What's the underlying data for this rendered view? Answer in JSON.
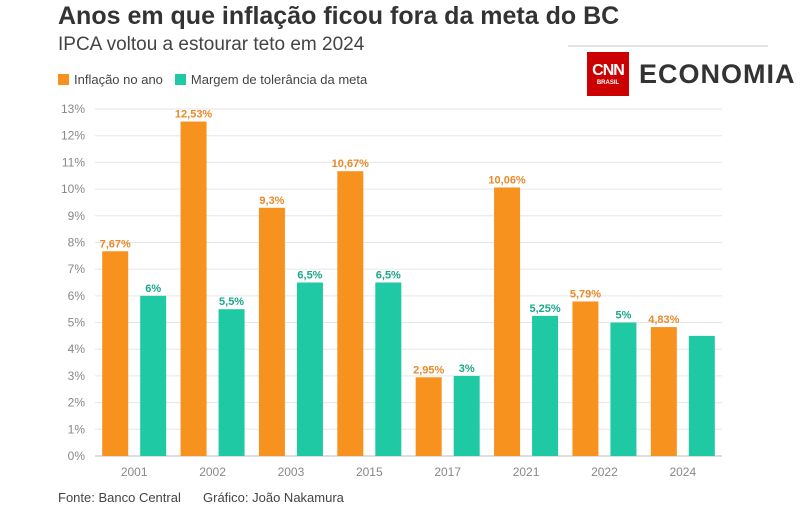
{
  "header": {
    "title": "Anos em que inflação ficou fora da meta do BC",
    "subtitle": "IPCA voltou a estourar teto em 2024"
  },
  "logo": {
    "cnn": "CNN",
    "cnn_sub": "BRASIL",
    "economia": "ECONOMIA"
  },
  "footer": {
    "source": "Fonte: Banco Central",
    "credit": "Gráfico: João Nakamura"
  },
  "chart_data": {
    "type": "bar",
    "title": "Anos em que inflação ficou fora da meta do BC",
    "categories": [
      "2001",
      "2002",
      "2003",
      "2015",
      "2017",
      "2021",
      "2022",
      "2024"
    ],
    "series": [
      {
        "name": "Inflação no ano",
        "color": "#f7921e",
        "values": [
          7.67,
          12.53,
          9.3,
          10.67,
          2.95,
          10.06,
          5.79,
          4.83
        ],
        "labels": [
          "7,67%",
          "12,53%",
          "9,3%",
          "10,67%",
          "2,95%",
          "10,06%",
          "5,79%",
          "4,83%"
        ]
      },
      {
        "name": "Margem de tolerância da meta",
        "color": "#1fc9a3",
        "values": [
          6,
          5.5,
          6.5,
          6.5,
          3,
          5.25,
          5,
          4.5
        ],
        "labels": [
          "6%",
          "5,5%",
          "6,5%",
          "6,5%",
          "3%",
          "5,25%",
          "5%",
          ""
        ]
      }
    ],
    "yticks": [
      "0%",
      "1%",
      "2%",
      "3%",
      "4%",
      "5%",
      "6%",
      "7%",
      "8%",
      "9%",
      "10%",
      "11%",
      "12%",
      "13%"
    ],
    "ylim": [
      0,
      13
    ],
    "grid": true,
    "legend": "top-left"
  }
}
